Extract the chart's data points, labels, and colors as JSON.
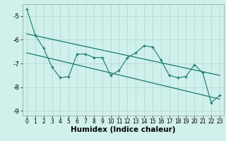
{
  "xlabel": "Humidex (Indice chaleur)",
  "background_color": "#cff0eb",
  "grid_color": "#b8ddd8",
  "line_color": "#1a7a6e",
  "x_values": [
    0,
    1,
    2,
    3,
    4,
    5,
    6,
    7,
    8,
    9,
    10,
    11,
    12,
    13,
    14,
    15,
    16,
    17,
    18,
    19,
    20,
    21,
    22,
    23
  ],
  "y_main": [
    -4.7,
    -5.8,
    -6.35,
    -7.15,
    -7.6,
    -7.55,
    -6.6,
    -6.6,
    -6.75,
    -6.75,
    -7.5,
    -7.3,
    -6.75,
    -6.55,
    -6.25,
    -6.3,
    -6.85,
    -7.5,
    -7.6,
    -7.55,
    -7.05,
    -7.4,
    -8.65,
    -8.35
  ],
  "trend1_x": [
    0,
    23
  ],
  "trend1_y": [
    -5.75,
    -7.5
  ],
  "trend2_x": [
    0,
    23
  ],
  "trend2_y": [
    -6.55,
    -8.5
  ],
  "ylim": [
    -9.2,
    -4.5
  ],
  "xlim": [
    -0.5,
    23.5
  ],
  "yticks": [
    -9,
    -8,
    -7,
    -6,
    -5
  ],
  "xticks": [
    0,
    1,
    2,
    3,
    4,
    5,
    6,
    7,
    8,
    9,
    10,
    11,
    12,
    13,
    14,
    15,
    16,
    17,
    18,
    19,
    20,
    21,
    22,
    23
  ],
  "tick_fontsize": 6.5,
  "xlabel_fontsize": 7.5,
  "marker_size": 3.0
}
